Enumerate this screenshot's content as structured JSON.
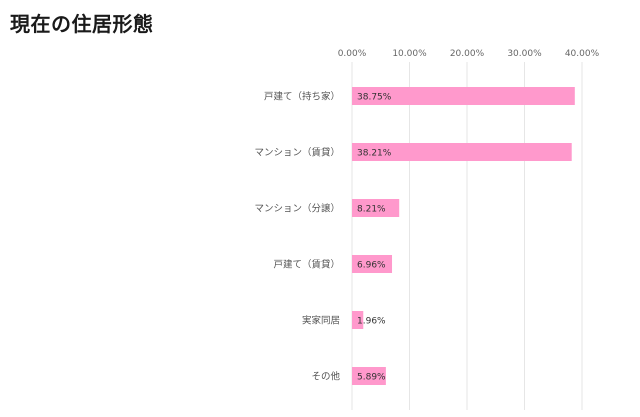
{
  "chart_data": {
    "type": "bar",
    "orientation": "horizontal",
    "title": "現在の住居形態",
    "categories": [
      "戸建て（持ち家）",
      "マンション（賃貸）",
      "マンション（分譲）",
      "戸建て（賃貸）",
      "実家同居",
      "その他"
    ],
    "values": [
      38.75,
      38.21,
      8.21,
      6.96,
      1.96,
      5.89
    ],
    "data_labels": [
      "38.75%",
      "38.21%",
      "8.21%",
      "6.96%",
      "1.96%",
      "5.89%"
    ],
    "xticks": [
      "0.00%",
      "10.00%",
      "20.00%",
      "30.00%",
      "40.00%"
    ],
    "xlim": [
      0,
      40
    ],
    "tick_position": "top",
    "grid": true,
    "legend": "none",
    "bar_color": "#ff99cc",
    "grid_color": "#e6e6e6",
    "xlabel": "",
    "ylabel": ""
  }
}
